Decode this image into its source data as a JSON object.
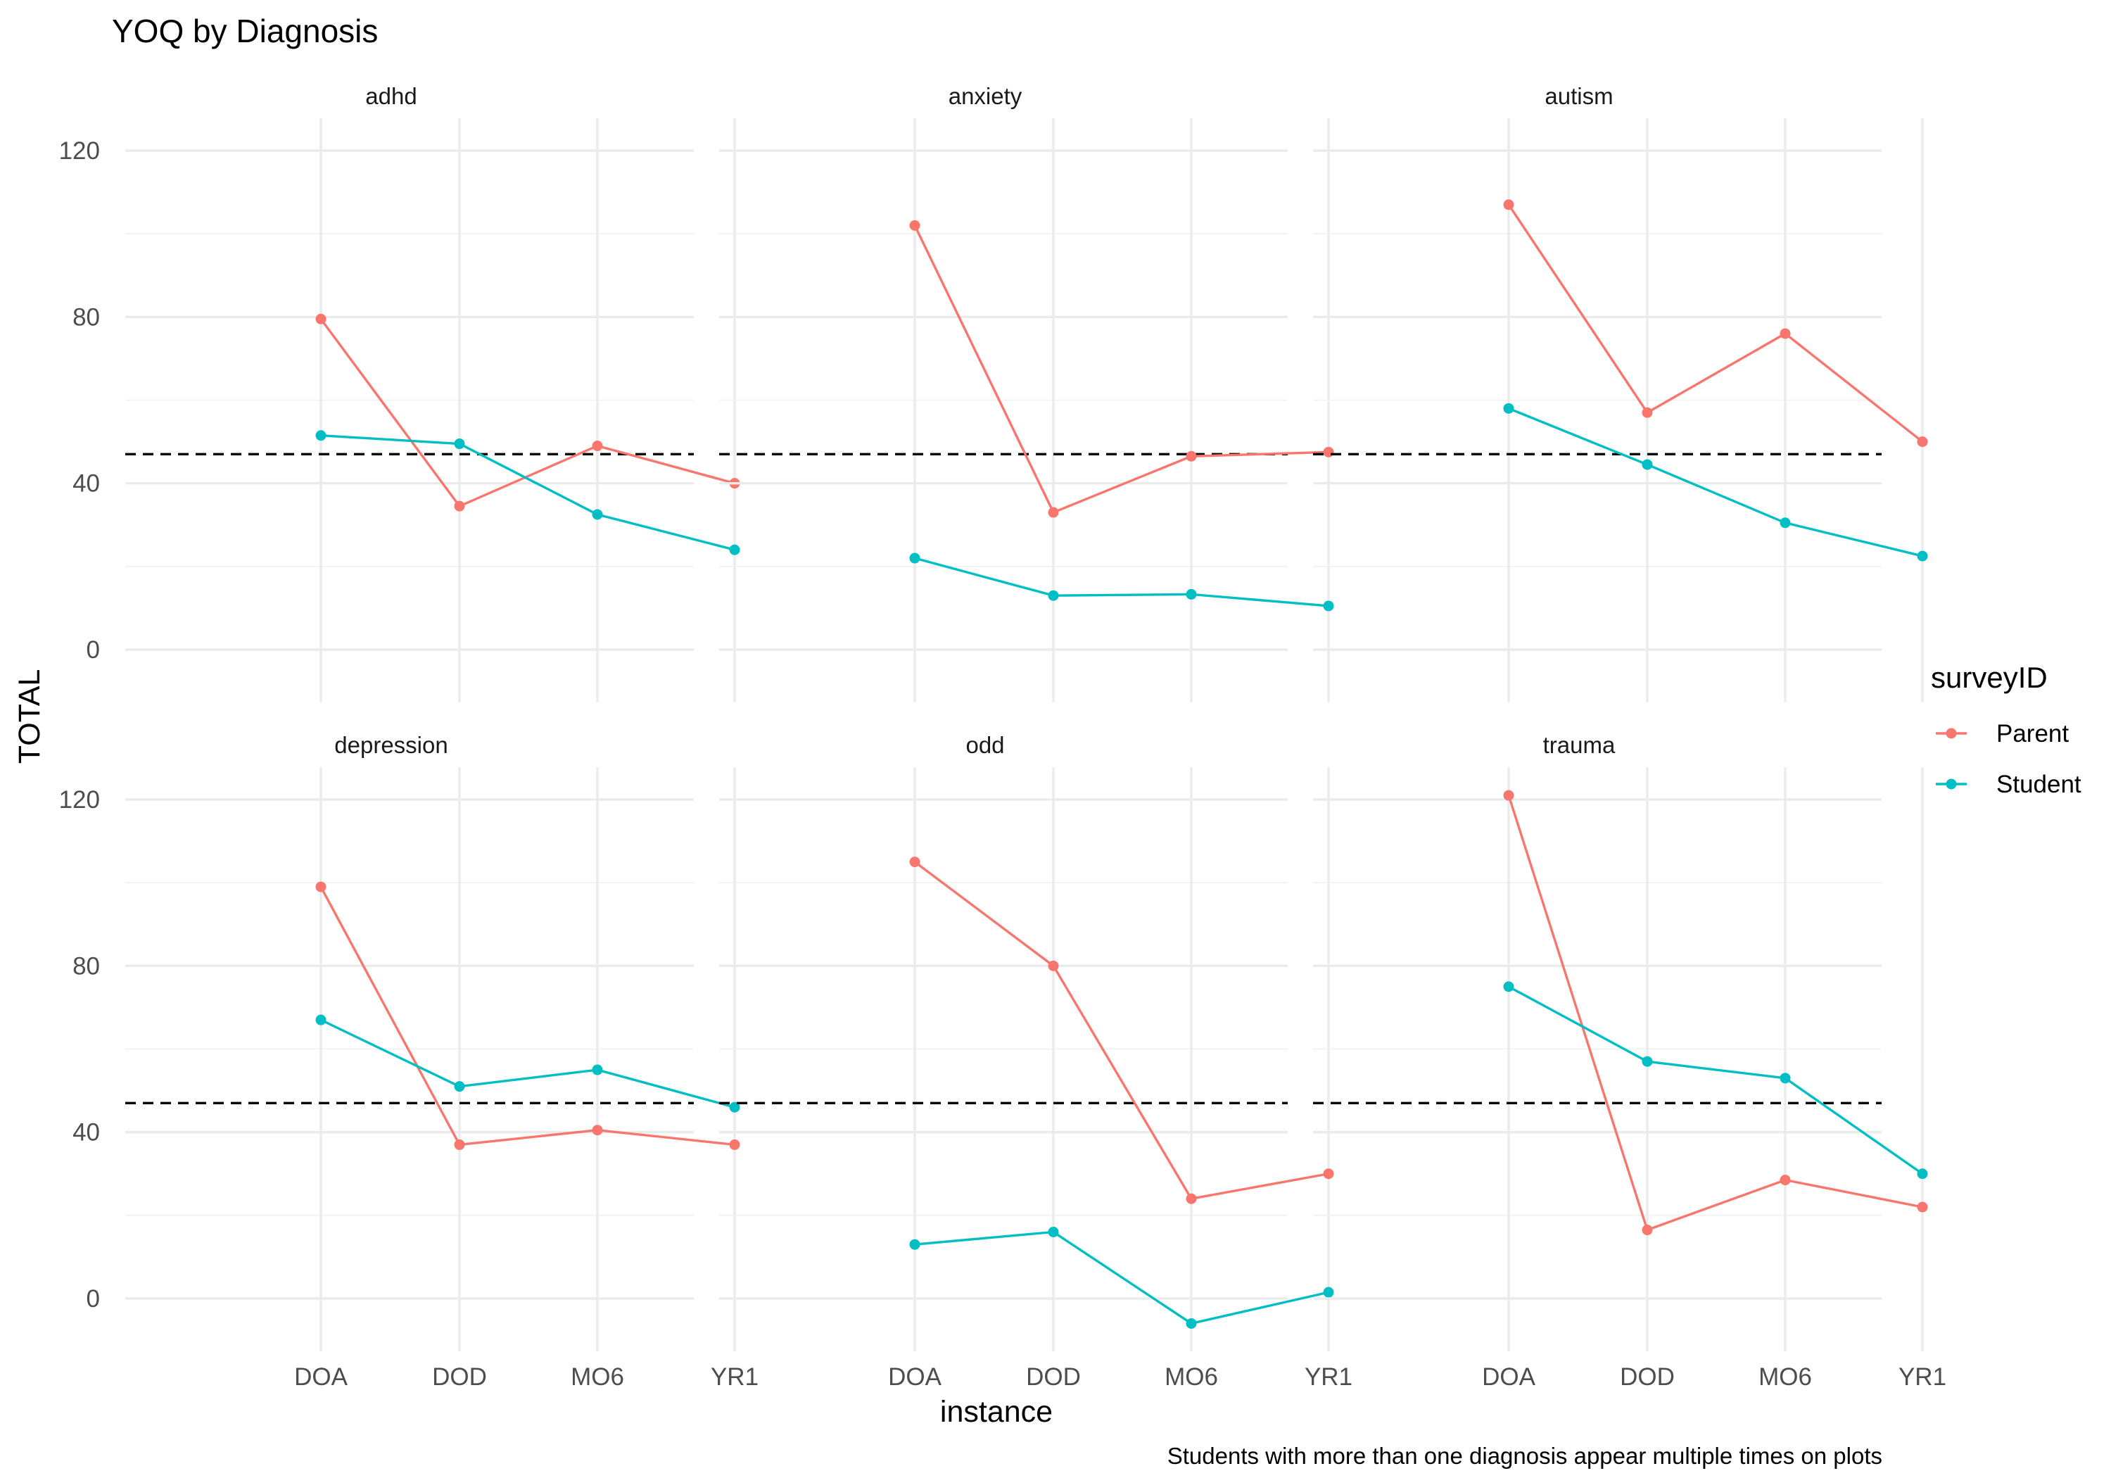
{
  "chart_data": {
    "type": "line",
    "title": "YOQ by Diagnosis",
    "xlabel": "instance",
    "ylabel": "TOTAL",
    "caption": "Students with more than one diagnosis appear multiple times on plots",
    "categories": [
      "DOA",
      "DOD",
      "MO6",
      "YR1"
    ],
    "y_ticks": [
      "0",
      "40",
      "80",
      "120"
    ],
    "ylim": [
      -9,
      128
    ],
    "reference_line": 47,
    "grid": true,
    "legend": {
      "title": "surveyID",
      "position": "right",
      "entries": [
        {
          "name": "Parent",
          "color": "#F8766D"
        },
        {
          "name": "Student",
          "color": "#00BFC4"
        }
      ]
    },
    "facets": [
      {
        "name": "adhd",
        "series": [
          {
            "name": "Parent",
            "values": [
              79.5,
              34.5,
              49,
              40
            ]
          },
          {
            "name": "Student",
            "values": [
              51.5,
              49.5,
              32.5,
              24
            ]
          }
        ]
      },
      {
        "name": "anxiety",
        "series": [
          {
            "name": "Parent",
            "values": [
              102,
              33,
              46.5,
              47.5
            ]
          },
          {
            "name": "Student",
            "values": [
              22,
              13,
              13.3,
              10.5
            ]
          }
        ]
      },
      {
        "name": "autism",
        "series": [
          {
            "name": "Parent",
            "values": [
              107,
              57,
              76,
              50
            ]
          },
          {
            "name": "Student",
            "values": [
              58,
              44.5,
              30.5,
              22.5
            ]
          }
        ]
      },
      {
        "name": "depression",
        "series": [
          {
            "name": "Parent",
            "values": [
              99,
              37,
              40.5,
              37
            ]
          },
          {
            "name": "Student",
            "values": [
              67,
              51,
              55,
              46
            ]
          }
        ]
      },
      {
        "name": "odd",
        "series": [
          {
            "name": "Parent",
            "values": [
              105,
              80,
              24,
              30
            ]
          },
          {
            "name": "Student",
            "values": [
              13,
              16,
              -6,
              1.5
            ]
          }
        ]
      },
      {
        "name": "trauma",
        "series": [
          {
            "name": "Parent",
            "values": [
              121,
              16.5,
              28.5,
              22
            ]
          },
          {
            "name": "Student",
            "values": [
              75,
              57,
              53,
              30
            ]
          }
        ]
      }
    ]
  }
}
